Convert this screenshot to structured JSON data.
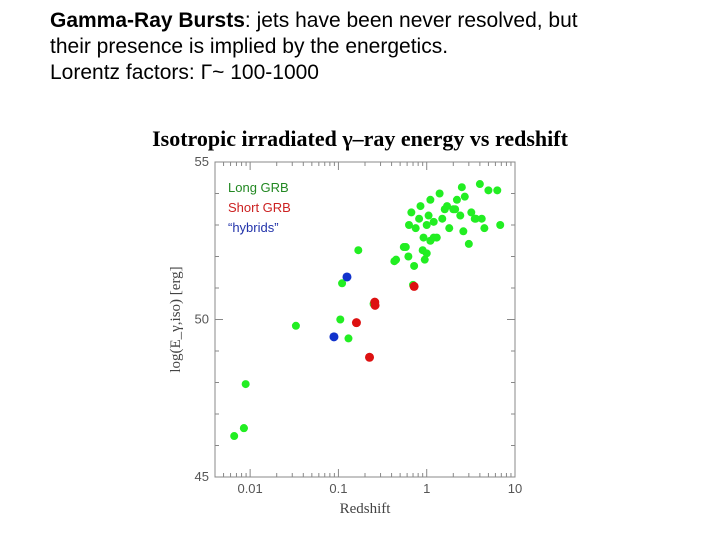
{
  "header": {
    "line1_bold": "Gamma-Ray Bursts",
    "line1_rest": ": jets have been never resolved, but",
    "line2": "their presence is implied by the energetics.",
    "line3": "Lorentz factors: Γ~ 100-1000"
  },
  "chart_title": "Isotropic irradiated γ–ray energy vs redshift",
  "colors": {
    "long": "#22ee22",
    "short": "#dd1111",
    "hybrid": "#1133cc",
    "long_label": "#228822",
    "short_label": "#cc2222",
    "hybrid_label": "#2233aa"
  },
  "chart_data": {
    "type": "scatter",
    "xlabel": "Redshift",
    "ylabel": "log(E_γ,iso) [erg]",
    "x_scale": "log",
    "xlim": [
      0.004,
      10
    ],
    "ylim": [
      45,
      55
    ],
    "x_ticks": [
      {
        "value": 0.01,
        "label": "0.01"
      },
      {
        "value": 0.1,
        "label": "0.1"
      },
      {
        "value": 1,
        "label": "1"
      },
      {
        "value": 10,
        "label": "10"
      }
    ],
    "y_ticks": [
      {
        "value": 45,
        "label": "45"
      },
      {
        "value": 50,
        "label": "50"
      },
      {
        "value": 55,
        "label": "55"
      }
    ],
    "series": [
      {
        "name": "Long GRB",
        "key": "long",
        "points": [
          [
            0.0085,
            46.55
          ],
          [
            0.0085,
            46.55
          ],
          [
            0.0066,
            46.3
          ],
          [
            0.0089,
            47.95
          ],
          [
            0.033,
            49.8
          ],
          [
            0.105,
            50.0
          ],
          [
            0.13,
            49.4
          ],
          [
            0.168,
            52.2
          ],
          [
            0.11,
            51.15
          ],
          [
            0.25,
            50.5
          ],
          [
            0.43,
            51.85
          ],
          [
            0.45,
            51.9
          ],
          [
            0.55,
            52.3
          ],
          [
            0.58,
            52.3
          ],
          [
            0.62,
            52.0
          ],
          [
            0.63,
            53.0
          ],
          [
            0.67,
            53.4
          ],
          [
            0.7,
            51.1
          ],
          [
            0.72,
            51.7
          ],
          [
            0.75,
            52.9
          ],
          [
            0.82,
            53.2
          ],
          [
            0.85,
            53.6
          ],
          [
            0.9,
            52.2
          ],
          [
            0.92,
            52.6
          ],
          [
            0.95,
            51.9
          ],
          [
            1.0,
            53.0
          ],
          [
            1.0,
            52.1
          ],
          [
            1.05,
            53.3
          ],
          [
            1.1,
            53.8
          ],
          [
            1.1,
            52.5
          ],
          [
            1.2,
            52.6
          ],
          [
            1.3,
            52.6
          ],
          [
            1.4,
            54.0
          ],
          [
            1.5,
            53.2
          ],
          [
            1.6,
            53.5
          ],
          [
            1.7,
            53.6
          ],
          [
            1.8,
            52.9
          ],
          [
            2.0,
            53.5
          ],
          [
            2.2,
            53.8
          ],
          [
            2.4,
            53.3
          ],
          [
            2.5,
            54.2
          ],
          [
            2.6,
            52.8
          ],
          [
            2.7,
            53.9
          ],
          [
            3.0,
            52.4
          ],
          [
            3.2,
            53.4
          ],
          [
            3.5,
            53.2
          ],
          [
            4.0,
            54.3
          ],
          [
            4.2,
            53.2
          ],
          [
            4.5,
            52.9
          ],
          [
            5.0,
            54.1
          ],
          [
            6.3,
            54.1
          ],
          [
            6.8,
            53.0
          ],
          [
            3.6,
            53.2
          ],
          [
            1.2,
            53.1
          ],
          [
            2.1,
            53.5
          ]
        ]
      },
      {
        "name": "Short GRB",
        "key": "short",
        "points": [
          [
            0.16,
            49.9
          ],
          [
            0.225,
            48.8
          ],
          [
            0.258,
            50.55
          ],
          [
            0.26,
            50.45
          ],
          [
            0.72,
            51.05
          ]
        ]
      },
      {
        "name": "“hybrids”",
        "key": "hybrid",
        "points": [
          [
            0.125,
            51.35
          ],
          [
            0.089,
            49.45
          ]
        ]
      }
    ]
  }
}
